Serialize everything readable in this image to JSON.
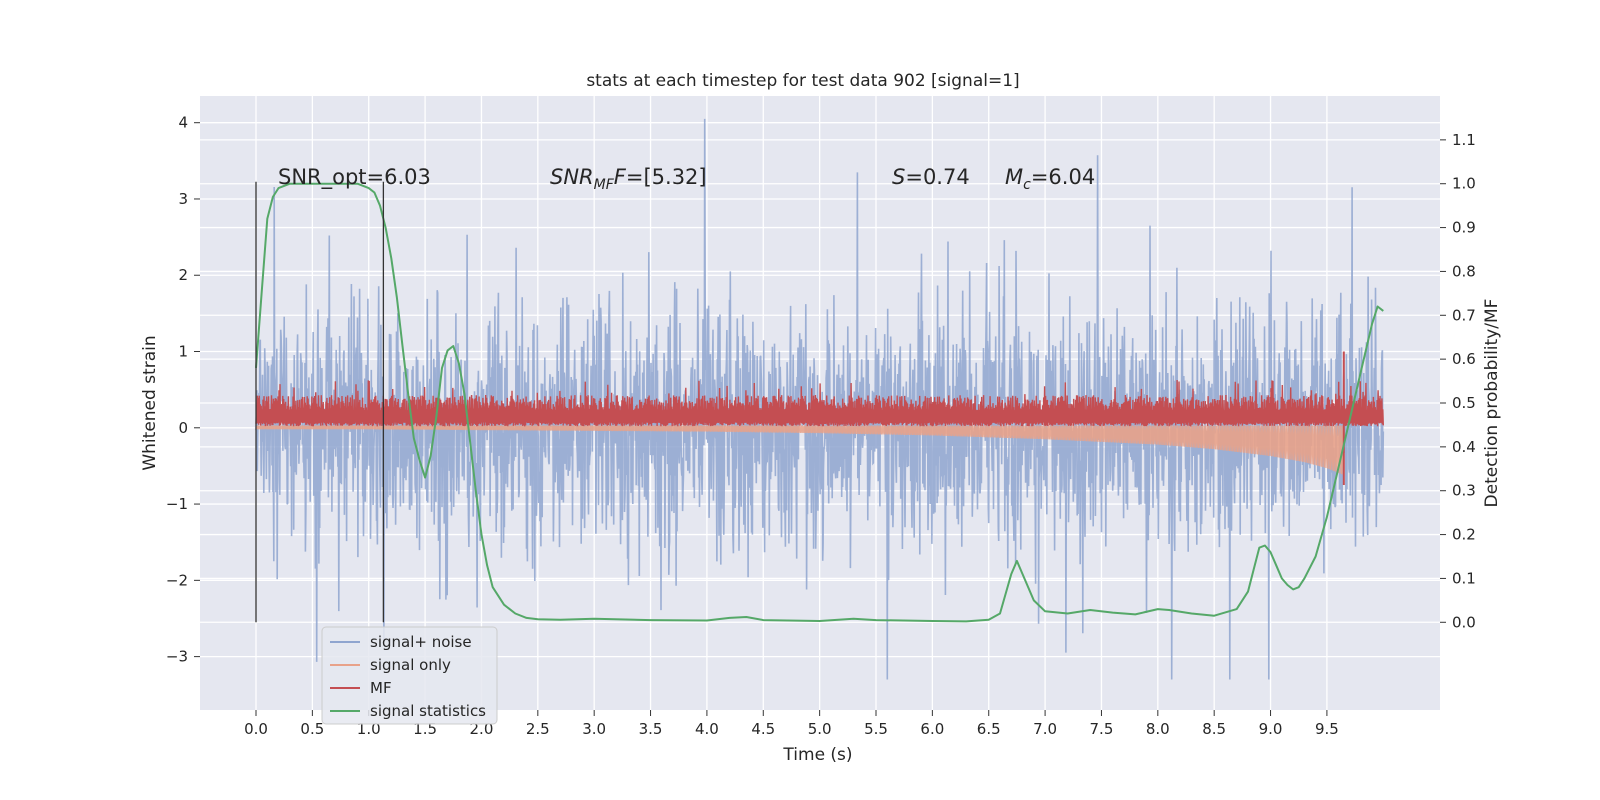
{
  "chart_data": {
    "type": "line",
    "title": "stats at each timestep for test data 902 [signal=1]",
    "xlabel": "Time (s)",
    "ylabel": "Whitened strain",
    "y2label": "Detection probability/MF",
    "xlim": [
      -0.5,
      10.5
    ],
    "ylim": [
      -3.7,
      4.35
    ],
    "y2lim": [
      -0.2,
      1.2
    ],
    "grid": true,
    "legend_position": "lower-left",
    "x_ticks": [
      "0.0",
      "0.5",
      "1.0",
      "1.5",
      "2.0",
      "2.5",
      "3.0",
      "3.5",
      "4.0",
      "4.5",
      "5.0",
      "5.5",
      "6.0",
      "6.5",
      "7.0",
      "7.5",
      "8.0",
      "8.5",
      "9.0",
      "9.5"
    ],
    "y_ticks": [
      "−3",
      "−2",
      "−1",
      "0",
      "1",
      "2",
      "3",
      "4"
    ],
    "y2_ticks": [
      "0.0",
      "0.1",
      "0.2",
      "0.3",
      "0.4",
      "0.5",
      "0.6",
      "0.7",
      "0.8",
      "0.9",
      "1.0",
      "1.1"
    ],
    "annotations": {
      "snr_opt": "SNR_opt=6.03",
      "snr_mf_sym": "SNR",
      "snr_mf_sub": "MF",
      "snr_mf_val": "=[5.32]",
      "s_sym": "S",
      "s_val": "=0.74",
      "mc_sym": "M",
      "mc_sub": "c",
      "mc_val": "=6.04"
    },
    "vertical_markers_x": [
      0.0,
      1.13
    ],
    "series": [
      {
        "name": "signal+ noise",
        "color": "#8fa5cf",
        "axis": "left",
        "description_range": [
          -3.3,
          4.05
        ],
        "x_range": [
          0.0,
          10.0
        ],
        "typical_amplitude": 1.5
      },
      {
        "name": "signal only",
        "color": "#e8a28a",
        "axis": "left",
        "x": [
          0.0,
          1,
          2,
          3,
          4,
          5,
          6,
          7,
          8,
          8.5,
          9,
          9.3,
          9.5,
          9.65
        ],
        "envelope": [
          0.02,
          0.02,
          0.03,
          0.04,
          0.05,
          0.07,
          0.1,
          0.15,
          0.22,
          0.28,
          0.37,
          0.45,
          0.53,
          0.62
        ]
      },
      {
        "name": "MF",
        "color": "#c44e52",
        "axis": "left",
        "x_range": [
          0.0,
          10.0
        ],
        "base": 0.02,
        "typical_top": 0.35,
        "peak": {
          "x": 9.65,
          "y": 1.0
        }
      },
      {
        "name": "signal statistics",
        "color": "#55a868",
        "axis": "right",
        "x": [
          0.0,
          0.05,
          0.1,
          0.15,
          0.2,
          0.3,
          0.5,
          0.7,
          0.9,
          1.0,
          1.05,
          1.1,
          1.15,
          1.2,
          1.25,
          1.3,
          1.35,
          1.4,
          1.45,
          1.5,
          1.55,
          1.6,
          1.65,
          1.7,
          1.75,
          1.8,
          1.85,
          1.9,
          1.95,
          2.0,
          2.05,
          2.1,
          2.2,
          2.3,
          2.4,
          2.5,
          2.7,
          3.0,
          3.5,
          4.0,
          4.2,
          4.35,
          4.5,
          5.0,
          5.3,
          5.5,
          6.0,
          6.3,
          6.5,
          6.6,
          6.7,
          6.75,
          6.8,
          6.9,
          7.0,
          7.2,
          7.4,
          7.6,
          7.8,
          8.0,
          8.1,
          8.3,
          8.5,
          8.7,
          8.8,
          8.85,
          8.9,
          8.95,
          9.0,
          9.05,
          9.1,
          9.15,
          9.2,
          9.25,
          9.3,
          9.4,
          9.5,
          9.6,
          9.7,
          9.8,
          9.9,
          9.95,
          10.0
        ],
        "values": [
          0.58,
          0.75,
          0.92,
          0.97,
          0.99,
          1.0,
          1.0,
          1.0,
          1.0,
          0.99,
          0.98,
          0.95,
          0.9,
          0.83,
          0.74,
          0.63,
          0.52,
          0.42,
          0.37,
          0.33,
          0.38,
          0.47,
          0.58,
          0.62,
          0.63,
          0.59,
          0.52,
          0.41,
          0.3,
          0.2,
          0.13,
          0.08,
          0.04,
          0.02,
          0.01,
          0.007,
          0.006,
          0.008,
          0.005,
          0.004,
          0.01,
          0.012,
          0.005,
          0.003,
          0.008,
          0.005,
          0.003,
          0.002,
          0.006,
          0.02,
          0.11,
          0.14,
          0.11,
          0.05,
          0.025,
          0.02,
          0.028,
          0.022,
          0.018,
          0.03,
          0.028,
          0.02,
          0.015,
          0.03,
          0.07,
          0.12,
          0.17,
          0.175,
          0.16,
          0.13,
          0.1,
          0.085,
          0.075,
          0.08,
          0.1,
          0.15,
          0.24,
          0.35,
          0.46,
          0.57,
          0.68,
          0.72,
          0.71
        ]
      }
    ],
    "legend": [
      "signal+ noise",
      "signal only",
      "MF",
      "signal statistics"
    ]
  }
}
